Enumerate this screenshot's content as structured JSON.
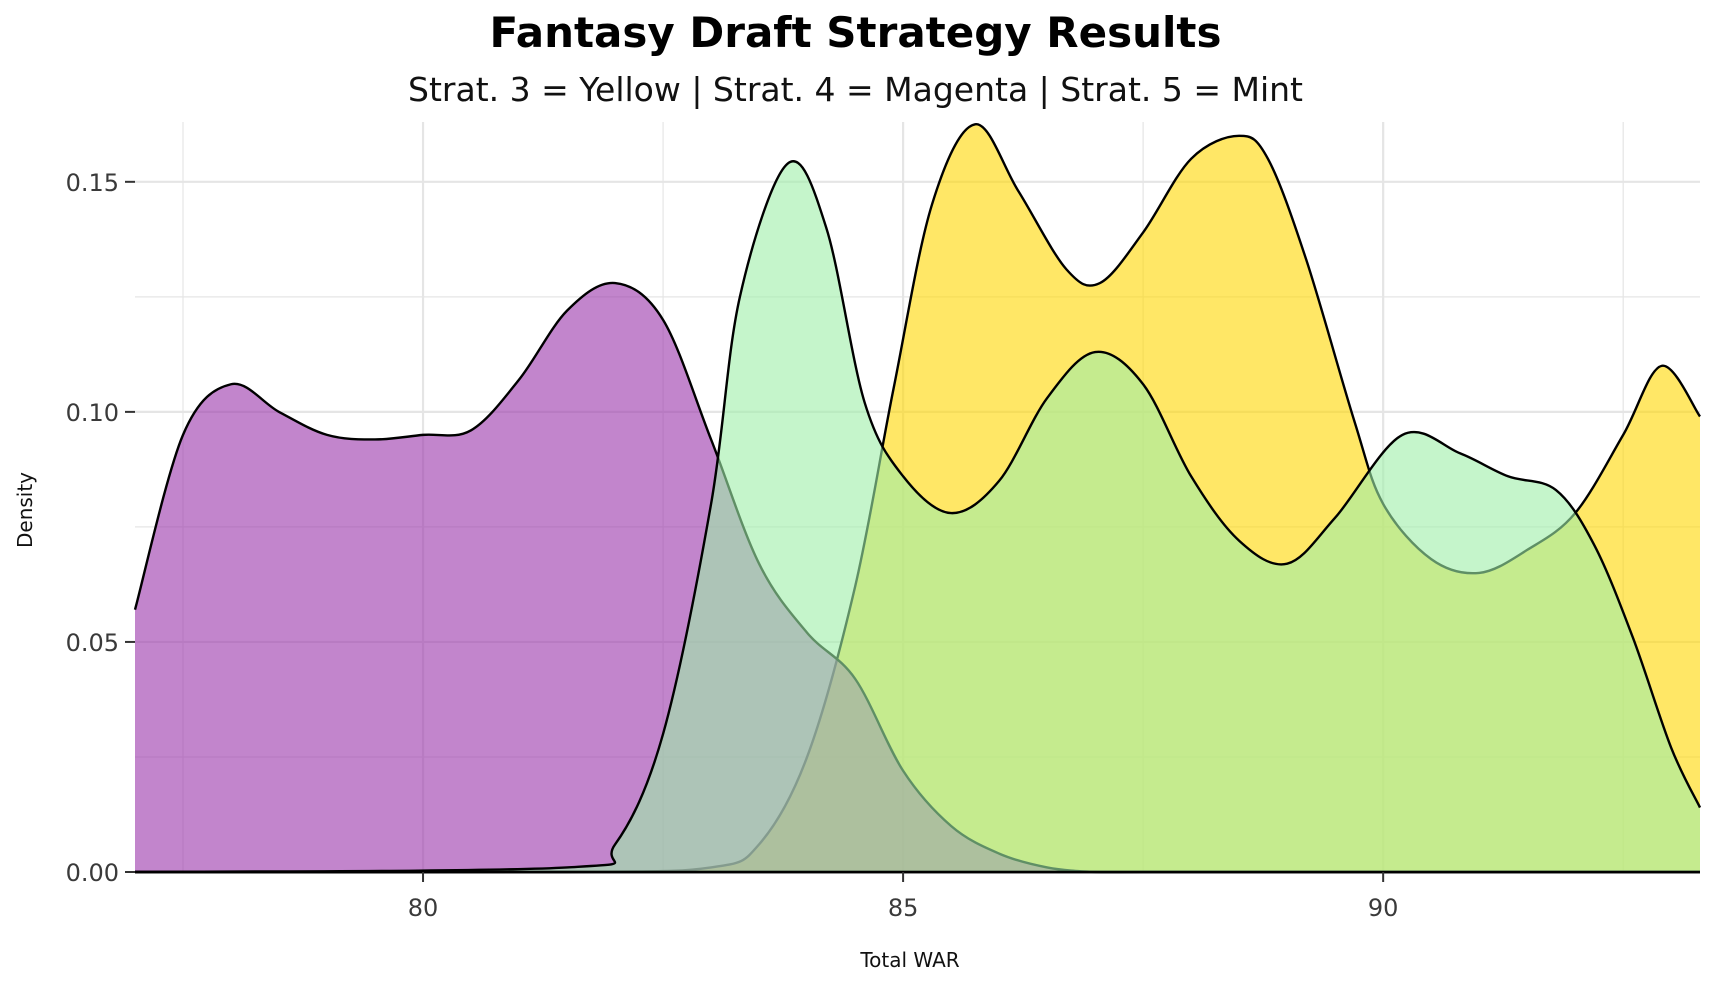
{
  "chart_data": {
    "type": "area",
    "title": "Fantasy Draft Strategy Results",
    "subtitle": "Strat. 3 = Yellow | Strat. 4 = Magenta | Strat. 5 = Mint",
    "xlabel": "Total WAR",
    "ylabel": "Density",
    "xlim": [
      77.0,
      93.3
    ],
    "ylim": [
      0,
      0.163
    ],
    "x_ticks": [
      80,
      85,
      90
    ],
    "x_tick_labels": [
      "80",
      "85",
      "90"
    ],
    "y_ticks": [
      0,
      0.05,
      0.1,
      0.15
    ],
    "y_tick_labels": [
      "0.00",
      "0.05",
      "0.10",
      "0.15"
    ],
    "grid": true,
    "legend": "none",
    "series": [
      {
        "color": "#FFD700",
        "x": [
          77.0,
          81.5,
          83.0,
          83.5,
          84.0,
          84.5,
          84.9,
          85.3,
          85.75,
          86.2,
          86.7,
          87.05,
          87.5,
          88.0,
          88.5,
          88.8,
          89.2,
          89.7,
          90.0,
          90.5,
          91.0,
          91.5,
          92.0,
          92.5,
          92.9,
          93.3
        ],
        "y": [
          0,
          0,
          0.001,
          0.006,
          0.025,
          0.062,
          0.105,
          0.145,
          0.1625,
          0.148,
          0.131,
          0.128,
          0.139,
          0.155,
          0.16,
          0.155,
          0.133,
          0.098,
          0.08,
          0.068,
          0.065,
          0.07,
          0.078,
          0.095,
          0.11,
          0.099
        ]
      },
      {
        "color": "#9933AA",
        "x": [
          77.0,
          77.5,
          78.0,
          78.5,
          79.0,
          79.5,
          80.0,
          80.5,
          81.0,
          81.5,
          82.0,
          82.5,
          83.0,
          83.5,
          84.0,
          84.5,
          85.0,
          85.5,
          86.0,
          86.5,
          87.0,
          87.5,
          88.0,
          88.5,
          89.0,
          90.0,
          93.3
        ],
        "y": [
          0.057,
          0.095,
          0.106,
          0.1,
          0.095,
          0.094,
          0.095,
          0.096,
          0.107,
          0.122,
          0.128,
          0.12,
          0.094,
          0.067,
          0.052,
          0.042,
          0.022,
          0.01,
          0.004,
          0.001,
          0,
          0,
          0,
          0,
          0,
          0,
          0
        ]
      },
      {
        "color": "#9EEFA8",
        "x": [
          77.0,
          81.5,
          82.0,
          82.5,
          83.0,
          83.3,
          83.8,
          84.2,
          84.6,
          85.0,
          85.5,
          86.0,
          86.5,
          87.0,
          87.5,
          88.0,
          88.5,
          89.0,
          89.5,
          90.2,
          90.8,
          91.3,
          91.8,
          92.2,
          92.6,
          93.0,
          93.3
        ],
        "y": [
          0,
          0.001,
          0.006,
          0.03,
          0.08,
          0.125,
          0.154,
          0.14,
          0.102,
          0.086,
          0.078,
          0.085,
          0.103,
          0.113,
          0.106,
          0.086,
          0.072,
          0.067,
          0.077,
          0.095,
          0.091,
          0.086,
          0.083,
          0.071,
          0.051,
          0.027,
          0.014
        ]
      }
    ],
    "style": {
      "colors": {
        "grid": "#e5e5e5",
        "outline": "#000000",
        "tick_label": "#3a3a3a"
      }
    }
  }
}
